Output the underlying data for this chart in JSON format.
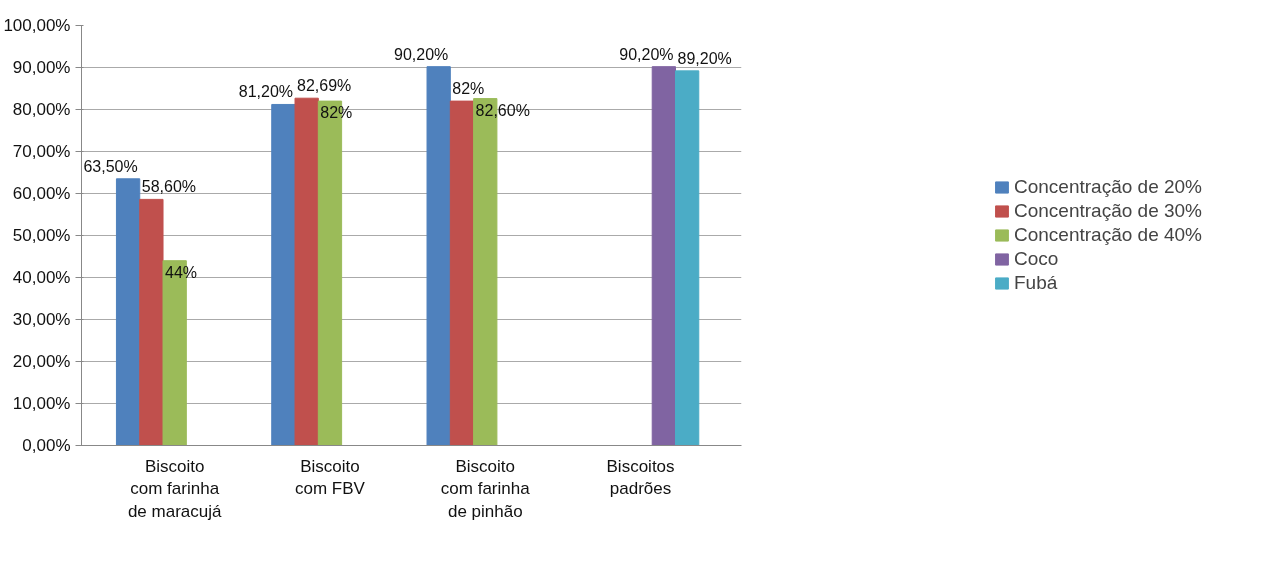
{
  "chart_data": {
    "type": "bar",
    "categories": [
      "Biscoito com farinha de maracujá",
      "Biscoito com FBV",
      "Biscoito com farinha de pinhão",
      "Biscoitos padrões"
    ],
    "series": [
      {
        "name": "Concentração de 20%",
        "color": "#4f81bd",
        "values": [
          63.5,
          81.2,
          90.2,
          null
        ],
        "value_labels": [
          "63,50%",
          "81,20%",
          "90,20%",
          null
        ]
      },
      {
        "name": "Concentração de 30%",
        "color": "#c0504d",
        "values": [
          58.6,
          82.69,
          82,
          null
        ],
        "value_labels": [
          "58,60%",
          "82,69%",
          "82%",
          null
        ]
      },
      {
        "name": "Concentração de 40%",
        "color": "#9bbb59",
        "values": [
          44,
          82,
          82.6,
          null
        ],
        "value_labels": [
          "44%",
          "82%",
          "82,60%",
          null
        ]
      },
      {
        "name": "Coco",
        "color": "#8064a2",
        "values": [
          null,
          null,
          null,
          90.2
        ],
        "value_labels": [
          null,
          null,
          null,
          "90,20%"
        ]
      },
      {
        "name": "Fubá",
        "color": "#4bacc6",
        "values": [
          null,
          null,
          null,
          89.2
        ],
        "value_labels": [
          null,
          null,
          null,
          "89,20%"
        ]
      }
    ],
    "ylim": [
      0,
      100
    ],
    "yticks": [
      {
        "value": 0,
        "label": "0,00%"
      },
      {
        "value": 10,
        "label": "10,00%"
      },
      {
        "value": 20,
        "label": "20,00%"
      },
      {
        "value": 30,
        "label": "30,00%"
      },
      {
        "value": 40,
        "label": "40,00%"
      },
      {
        "value": 50,
        "label": "50,00%"
      },
      {
        "value": 60,
        "label": "60,00%"
      },
      {
        "value": 70,
        "label": "70,00%"
      },
      {
        "value": 80,
        "label": "80,00%"
      },
      {
        "value": 90,
        "label": "90,00%"
      },
      {
        "value": 100,
        "label": "100,00%"
      }
    ],
    "grid": "y",
    "legend": "right"
  }
}
